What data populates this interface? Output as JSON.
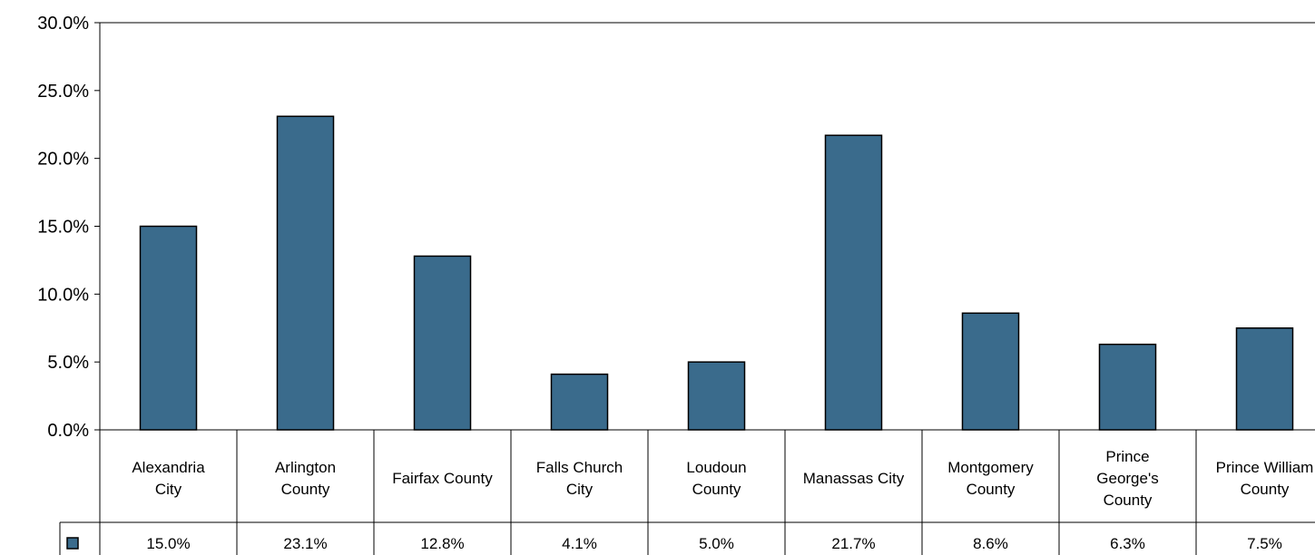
{
  "chart_data": {
    "type": "bar",
    "title": "",
    "xlabel": "",
    "ylabel": "",
    "ylim": [
      0,
      30
    ],
    "y_ticks": [
      "0.0%",
      "5.0%",
      "10.0%",
      "15.0%",
      "20.0%",
      "25.0%",
      "30.0%"
    ],
    "grid": false,
    "legend": "none",
    "data_table": true,
    "categories": [
      [
        "Alexandria",
        "City"
      ],
      [
        "Arlington",
        "County"
      ],
      [
        "Fairfax County"
      ],
      [
        "Falls Church",
        "City"
      ],
      [
        "Loudoun",
        "County"
      ],
      [
        "Manassas City"
      ],
      [
        "Montgomery",
        "County"
      ],
      [
        "Prince",
        "George's",
        "County"
      ],
      [
        "Prince William",
        "County"
      ]
    ],
    "values": [
      15.0,
      23.1,
      12.8,
      4.1,
      5.0,
      21.7,
      8.6,
      6.3,
      7.5
    ],
    "value_labels": [
      "15.0%",
      "23.1%",
      "12.8%",
      "4.1%",
      "5.0%",
      "21.7%",
      "8.6%",
      "6.3%",
      "7.5%"
    ],
    "bar_color": "#3a6b8c",
    "bar_stroke": "#000000"
  }
}
